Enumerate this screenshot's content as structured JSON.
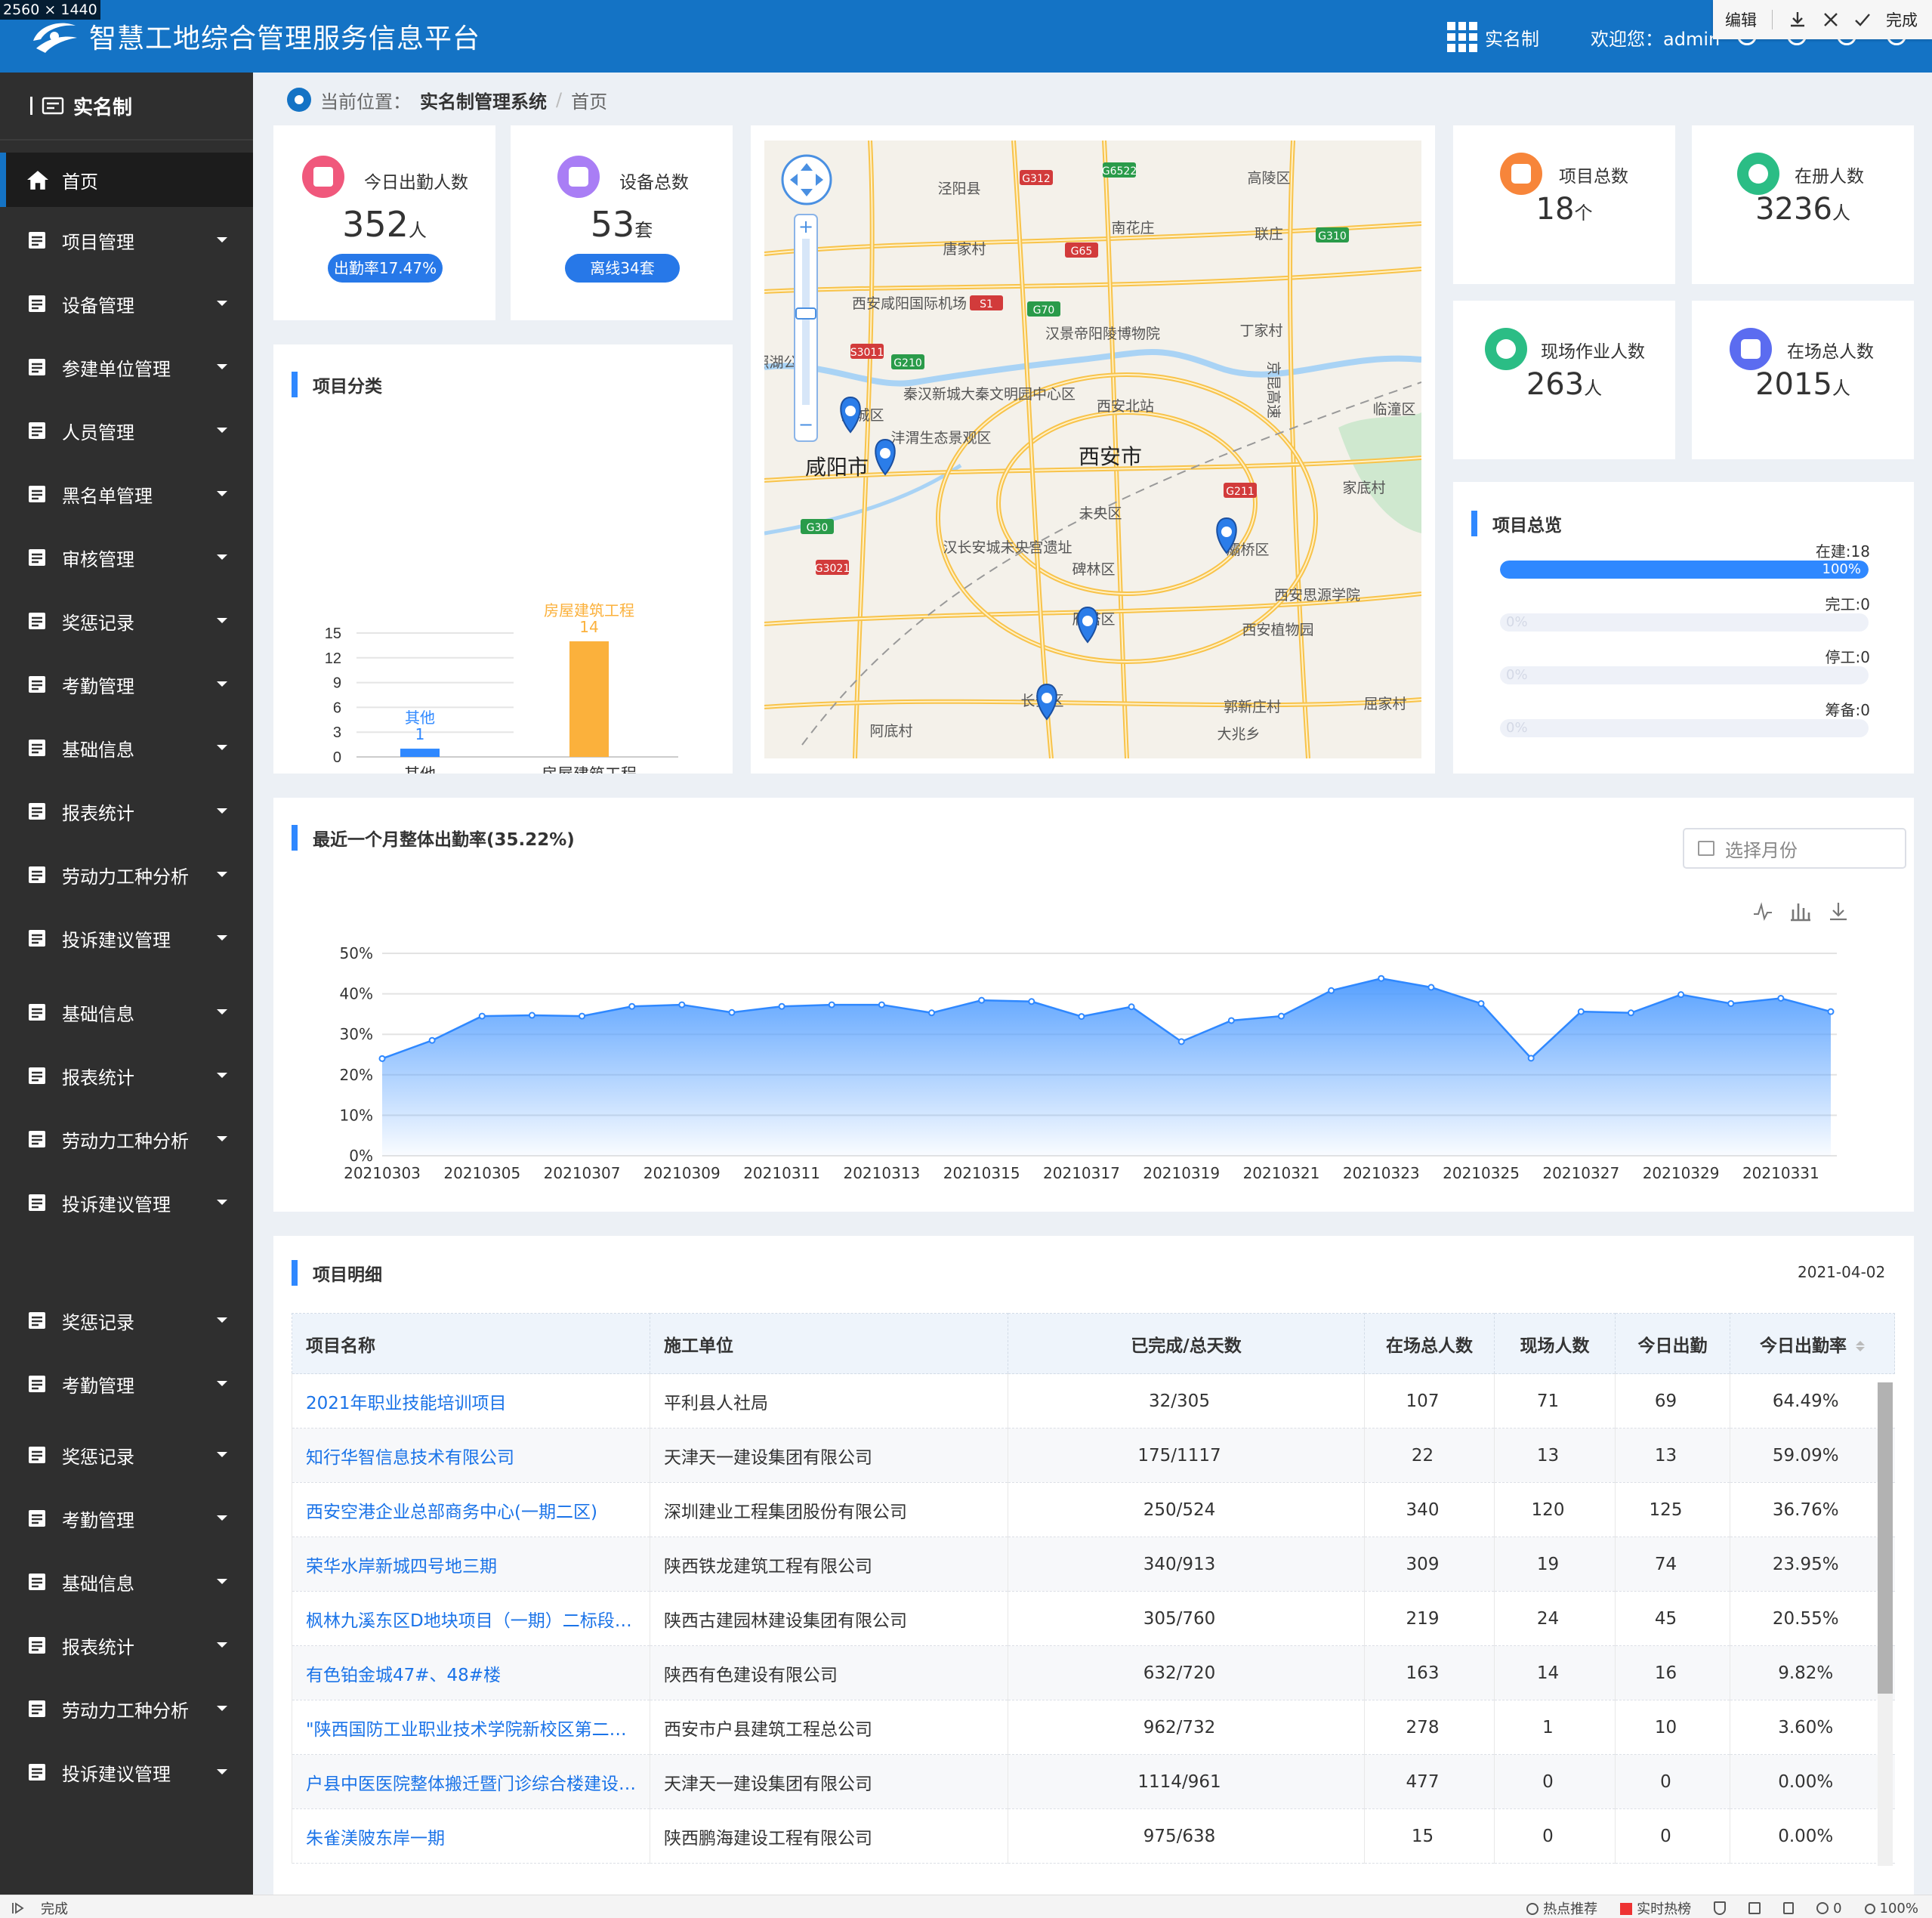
{
  "screen_size_label": "2560 × 1440",
  "header": {
    "title": "智慧工地综合管理服务信息平台",
    "module": "实名制",
    "welcome": "欢迎您：admin"
  },
  "popup": {
    "edit": "编辑",
    "done": "完成"
  },
  "sidebar": {
    "title": "实名制",
    "items": [
      {
        "label": "首页",
        "icon": "home-icon"
      },
      {
        "label": "项目管理",
        "icon": "project-icon"
      },
      {
        "label": "设备管理",
        "icon": "device-icon"
      },
      {
        "label": "参建单位管理",
        "icon": "building-icon"
      },
      {
        "label": "人员管理",
        "icon": "people-icon"
      },
      {
        "label": "黑名单管理",
        "icon": "blacklist-icon"
      },
      {
        "label": "审核管理",
        "icon": "audit-icon"
      },
      {
        "label": "奖惩记录",
        "icon": "record-icon"
      },
      {
        "label": "考勤管理",
        "icon": "attendance-icon"
      },
      {
        "label": "基础信息",
        "icon": "info-icon"
      },
      {
        "label": "报表统计",
        "icon": "report-icon"
      },
      {
        "label": "劳动力工种分析",
        "icon": "worker-icon"
      },
      {
        "label": "投诉建议管理",
        "icon": "complaint-icon"
      },
      {
        "label": "基础信息",
        "icon": "info-icon"
      },
      {
        "label": "报表统计",
        "icon": "report-icon"
      },
      {
        "label": "劳动力工种分析",
        "icon": "worker-icon"
      },
      {
        "label": "投诉建议管理",
        "icon": "complaint-icon"
      },
      {
        "label": "奖惩记录",
        "icon": "record-icon"
      },
      {
        "label": "考勤管理",
        "icon": "attendance-icon"
      },
      {
        "label": "奖惩记录",
        "icon": "record-icon"
      },
      {
        "label": "考勤管理",
        "icon": "attendance-icon"
      },
      {
        "label": "基础信息",
        "icon": "info-icon"
      },
      {
        "label": "报表统计",
        "icon": "report-icon"
      },
      {
        "label": "劳动力工种分析",
        "icon": "worker-icon"
      },
      {
        "label": "投诉建议管理",
        "icon": "complaint-icon"
      }
    ]
  },
  "breadcrumb": {
    "prefix": "当前位置：",
    "system": "实名制管理系统",
    "sep": "/",
    "current": "首页"
  },
  "stats": {
    "today_attendance": {
      "label": "今日出勤人数",
      "value": "352",
      "unit": "人",
      "badge": "出勤率17.47%",
      "color": "#f0587c"
    },
    "device_total": {
      "label": "设备总数",
      "value": "53",
      "unit": "套",
      "badge": "离线34套",
      "color": "#a97ef5"
    },
    "project_total": {
      "label": "项目总数",
      "value": "18",
      "unit": "个",
      "color": "#f7853a"
    },
    "registered": {
      "label": "在册人数",
      "value": "3236",
      "unit": "人",
      "color": "#2bbd85"
    },
    "on_site_work": {
      "label": "现场作业人数",
      "value": "263",
      "unit": "人",
      "color": "#2bbd85"
    },
    "on_site_total": {
      "label": "在场总人数",
      "value": "2015",
      "unit": "人",
      "color": "#5b6cf0"
    }
  },
  "project_category": {
    "title": "项目分类"
  },
  "overview": {
    "title": "项目总览",
    "items": [
      {
        "label": "在建:18",
        "pct_text": "100%",
        "fraction": 1.0
      },
      {
        "label": "完工:0",
        "pct_text": "0%",
        "fraction": 0
      },
      {
        "label": "停工:0",
        "pct_text": "0%",
        "fraction": 0
      },
      {
        "label": "筹备:0",
        "pct_text": "0%",
        "fraction": 0
      }
    ]
  },
  "map": {
    "labels": [
      "泾阳县",
      "高陵区",
      "南花庄",
      "唐家村",
      "联庄",
      "西安咸阳国际机场",
      "汉景帝阳陵博物院",
      "丁家村",
      "秦汉新城大秦文明园中心区",
      "西安北站",
      "咸阳市",
      "沣渭生态景观区",
      "西安市",
      "家底村",
      "未央区",
      "汉长安城未央宫遗址",
      "碑林区",
      "灞桥区",
      "西安思源学院",
      "雁塔区",
      "西安植物园",
      "长安区",
      "郭新庄村",
      "阿底村",
      "大兆乡",
      "屈家村",
      "渭城区",
      "临潼区",
      "双照湖公园",
      "京昆高速"
    ],
    "roads": [
      "G312",
      "G6522",
      "G65",
      "G310",
      "S1",
      "G70",
      "S3011",
      "G210",
      "G211",
      "G30",
      "G3021"
    ]
  },
  "attendance_trend": {
    "title": "最近一个月整体出勤率(35.22%)",
    "month_placeholder": "选择月份"
  },
  "detail": {
    "title": "项目明细",
    "date": "2021-04-02",
    "columns": [
      "项目名称",
      "施工单位",
      "已完成/总天数",
      "在场总人数",
      "现场人数",
      "今日出勤",
      "今日出勤率"
    ],
    "rows": [
      [
        "2021年职业技能培训项目",
        "平利县人社局",
        "32/305",
        "107",
        "71",
        "69",
        "64.49%"
      ],
      [
        "知行华智信息技术有限公司",
        "天津天一建设集团有限公司",
        "175/1117",
        "22",
        "13",
        "13",
        "59.09%"
      ],
      [
        "西安空港企业总部商务中心(一期二区)",
        "深圳建业工程集团股份有限公司",
        "250/524",
        "340",
        "120",
        "125",
        "36.76%"
      ],
      [
        "荣华水岸新城四号地三期",
        "陕西铁龙建筑工程有限公司",
        "340/913",
        "309",
        "19",
        "74",
        "23.95%"
      ],
      [
        "枫林九溪东区D地块项目（一期）二标段…",
        "陕西古建园林建设集团有限公司",
        "305/760",
        "219",
        "24",
        "45",
        "20.55%"
      ],
      [
        "有色铂金城47#、48#楼",
        "陕西有色建设有限公司",
        "632/720",
        "163",
        "14",
        "16",
        "9.82%"
      ],
      [
        "\"陕西国防工业职业技术学院新校区第二…",
        "西安市户县建筑工程总公司",
        "962/732",
        "278",
        "1",
        "10",
        "3.60%"
      ],
      [
        "户县中医医院整体搬迁暨门诊综合楼建设…",
        "天津天一建设集团有限公司",
        "1114/961",
        "477",
        "0",
        "0",
        "0.00%"
      ],
      [
        "朱雀渼陂东岸一期",
        "陕西鹏海建设工程有限公司",
        "975/638",
        "15",
        "0",
        "0",
        "0.00%"
      ]
    ]
  },
  "statusbar": {
    "left": "完成",
    "hot": "热点推荐",
    "realtime": "实时热榜",
    "zoom": "100%",
    "downloads": "0"
  },
  "chart_data": [
    {
      "type": "bar",
      "title": "项目分类",
      "categories": [
        "其他",
        "房屋建筑工程"
      ],
      "values": [
        1,
        14
      ],
      "ylim": [
        0,
        15
      ],
      "yticks": [
        0,
        3,
        6,
        9,
        12,
        15
      ],
      "colors": [
        "#2f88ff",
        "#fbb13c"
      ],
      "grid": true
    },
    {
      "type": "area",
      "title": "最近一个月整体出勤率(35.22%)",
      "x": [
        "20210303",
        "20210304",
        "20210305",
        "20210306",
        "20210307",
        "20210308",
        "20210309",
        "20210310",
        "20210311",
        "20210312",
        "20210313",
        "20210314",
        "20210315",
        "20210316",
        "20210317",
        "20210318",
        "20210319",
        "20210320",
        "20210321",
        "20210322",
        "20210323",
        "20210324",
        "20210325",
        "20210326",
        "20210327",
        "20210328",
        "20210329",
        "20210330",
        "20210331",
        "20210401"
      ],
      "values": [
        24,
        28.5,
        34.5,
        34.7,
        34.5,
        36.9,
        37.3,
        35.4,
        36.9,
        37.3,
        37.3,
        35.3,
        38.4,
        38.1,
        34.4,
        36.8,
        28.2,
        33.4,
        34.5,
        40.8,
        43.8,
        41.6,
        37.6,
        24.1,
        35.6,
        35.3,
        39.8,
        37.6,
        38.9,
        35.6
      ],
      "xticks": [
        "20210303",
        "20210305",
        "20210307",
        "20210309",
        "20210311",
        "20210313",
        "20210315",
        "20210317",
        "20210319",
        "20210321",
        "20210323",
        "20210325",
        "20210327",
        "20210329",
        "20210331"
      ],
      "yticks": [
        "0%",
        "10%",
        "20%",
        "30%",
        "40%",
        "50%"
      ],
      "ylim": [
        0,
        50
      ],
      "color": "#2f88ff",
      "grid": true
    }
  ]
}
